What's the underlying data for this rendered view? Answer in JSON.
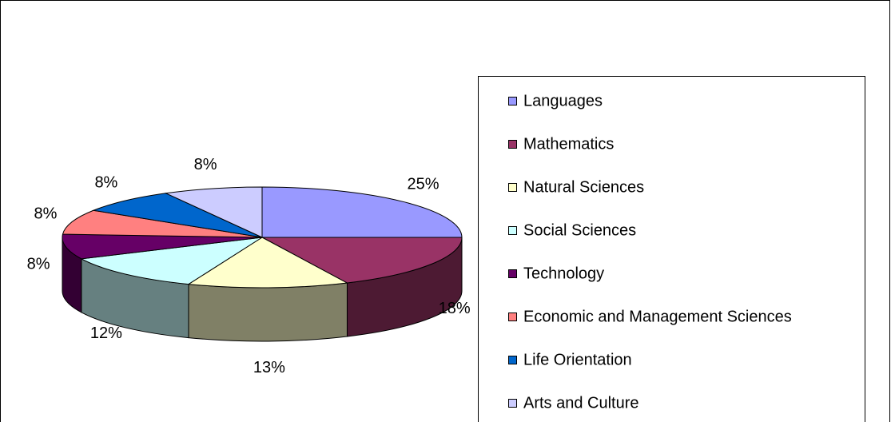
{
  "chart_data": {
    "type": "pie",
    "categories": [
      "Languages",
      "Mathematics",
      "Natural Sciences",
      "Social Sciences",
      "Technology",
      "Economic and Management Sciences",
      "Life Orientation",
      "Arts and Culture"
    ],
    "values": [
      25,
      18,
      13,
      12,
      8,
      8,
      8,
      8
    ],
    "value_labels": [
      "25%",
      "18%",
      "13%",
      "12%",
      "8%",
      "8%",
      "8%",
      "8%"
    ],
    "colors": [
      "#9999ff",
      "#993366",
      "#ffffcc",
      "#ccffff",
      "#660066",
      "#ff8080",
      "#0066cc",
      "#ccccff"
    ],
    "legend": "right"
  }
}
